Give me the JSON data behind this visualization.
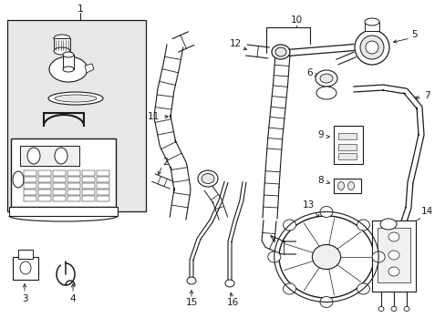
{
  "bg_color": "#ffffff",
  "line_color": "#1a1a1a",
  "box1_fill": "#e8e8e8",
  "fig_width": 4.89,
  "fig_height": 3.6,
  "dpi": 100
}
